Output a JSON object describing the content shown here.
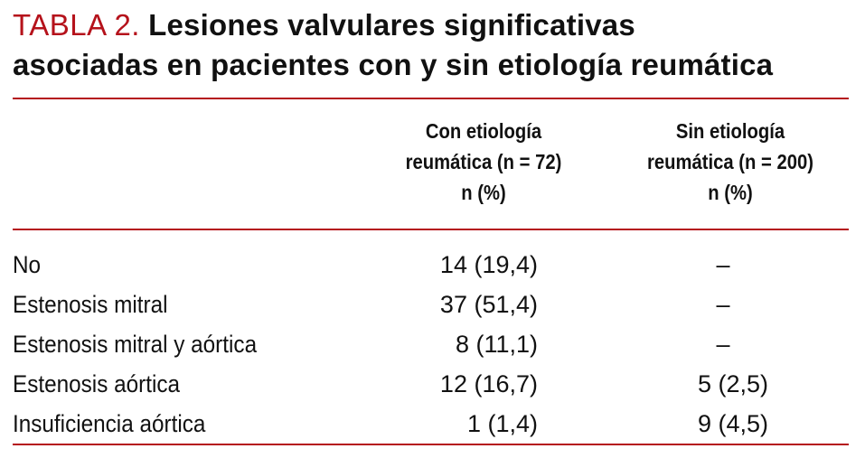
{
  "table": {
    "label": "TABLA 2.",
    "title_line1": "Lesiones valvulares significativas",
    "title_line2": "asociadas en pacientes con y sin etiología reumática",
    "columns": [
      {
        "line1": "Con etiología",
        "line2": "reumática (n = 72)",
        "line3": "n (%)"
      },
      {
        "line1": "Sin etiología",
        "line2": "reumática (n = 200)",
        "line3": "n (%)"
      }
    ],
    "rows": [
      {
        "label": "No",
        "con": "14 (19,4)",
        "sin": "–"
      },
      {
        "label": "Estenosis mitral",
        "con": "37 (51,4)",
        "sin": "–"
      },
      {
        "label": "Estenosis mitral y aórtica",
        "con": "8 (11,1)",
        "sin": "–"
      },
      {
        "label": "Estenosis aórtica",
        "con": "12 (16,7)",
        "sin": "5 (2,5)"
      },
      {
        "label": "Insuficiencia aórtica",
        "con": "1 (1,4)",
        "sin": "9 (4,5)"
      }
    ]
  },
  "colors": {
    "accent": "#b5121b",
    "text": "#111111"
  }
}
